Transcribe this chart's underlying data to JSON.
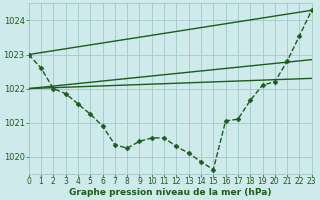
{
  "series": [
    {
      "name": "line_main",
      "x": [
        0,
        1,
        2,
        3,
        4,
        5,
        6,
        7,
        8,
        9,
        10,
        11,
        12,
        13,
        14,
        15,
        16,
        17,
        18,
        19,
        20,
        21,
        22,
        23
      ],
      "y": [
        1023.0,
        1022.6,
        1022.0,
        1021.85,
        1021.55,
        1021.25,
        1020.9,
        1020.35,
        1020.25,
        1020.45,
        1020.55,
        1020.55,
        1020.3,
        1020.1,
        1019.85,
        1019.62,
        1021.05,
        1021.1,
        1021.65,
        1022.1,
        1022.2,
        1022.8,
        1023.55,
        1024.3
      ],
      "color": "#1a5c1a",
      "linewidth": 1.0,
      "marker": "D",
      "markersize": 2.5,
      "linestyle": "--"
    },
    {
      "name": "line_top",
      "x": [
        0,
        23
      ],
      "y": [
        1023.0,
        1024.3
      ],
      "color": "#1a5c1a",
      "linewidth": 1.0,
      "marker": null,
      "linestyle": "-"
    },
    {
      "name": "line_mid1",
      "x": [
        0,
        23
      ],
      "y": [
        1022.0,
        1022.85
      ],
      "color": "#1a5c1a",
      "linewidth": 1.0,
      "marker": null,
      "linestyle": "-"
    },
    {
      "name": "line_mid2",
      "x": [
        0,
        23
      ],
      "y": [
        1022.0,
        1022.3
      ],
      "color": "#1a5c1a",
      "linewidth": 1.0,
      "marker": null,
      "linestyle": "-"
    }
  ],
  "xlim": [
    0,
    23
  ],
  "ylim": [
    1019.5,
    1024.5
  ],
  "yticks": [
    1020,
    1021,
    1022,
    1023,
    1024
  ],
  "xticks": [
    0,
    1,
    2,
    3,
    4,
    5,
    6,
    7,
    8,
    9,
    10,
    11,
    12,
    13,
    14,
    15,
    16,
    17,
    18,
    19,
    20,
    21,
    22,
    23
  ],
  "xlabel": "Graphe pression niveau de la mer (hPa)",
  "xlabel_fontsize": 6.5,
  "tick_fontsize": 5.5,
  "ytick_fontsize": 6.0,
  "background_color": "#ceeaea",
  "grid_color": "#a0c8c8",
  "label_color": "#1a5c1a"
}
